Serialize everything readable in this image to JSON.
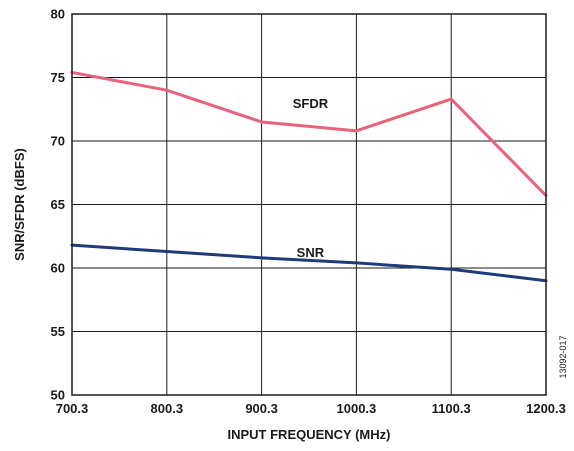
{
  "chart_data": {
    "type": "line",
    "xlabel": "INPUT FREQUENCY (MHz)",
    "ylabel": "SNR/SFDR (dBFS)",
    "xlim": [
      700.3,
      1200.3
    ],
    "ylim": [
      50,
      80
    ],
    "x_ticks": [
      "700.3",
      "800.3",
      "900.3",
      "1000.3",
      "1100.3",
      "1200.3"
    ],
    "y_ticks": [
      "50",
      "55",
      "60",
      "65",
      "70",
      "75",
      "80"
    ],
    "grid": true,
    "series": [
      {
        "name": "SFDR",
        "color": "#e8627a",
        "label_at": {
          "x": 1000.3,
          "y": 72.9
        },
        "x": [
          700.3,
          800.3,
          900.3,
          1000.3,
          1100.3,
          1200.3
        ],
        "y": [
          75.4,
          74.0,
          71.5,
          70.8,
          73.3,
          65.7
        ]
      },
      {
        "name": "SNR",
        "color": "#1f3b78",
        "label_at": {
          "x": 1000.3,
          "y": 61.2
        },
        "x": [
          700.3,
          800.3,
          900.3,
          1000.3,
          1100.3,
          1200.3
        ],
        "y": [
          61.8,
          61.3,
          60.8,
          60.4,
          59.9,
          59.0
        ]
      }
    ],
    "figure_id": "13092-017"
  }
}
